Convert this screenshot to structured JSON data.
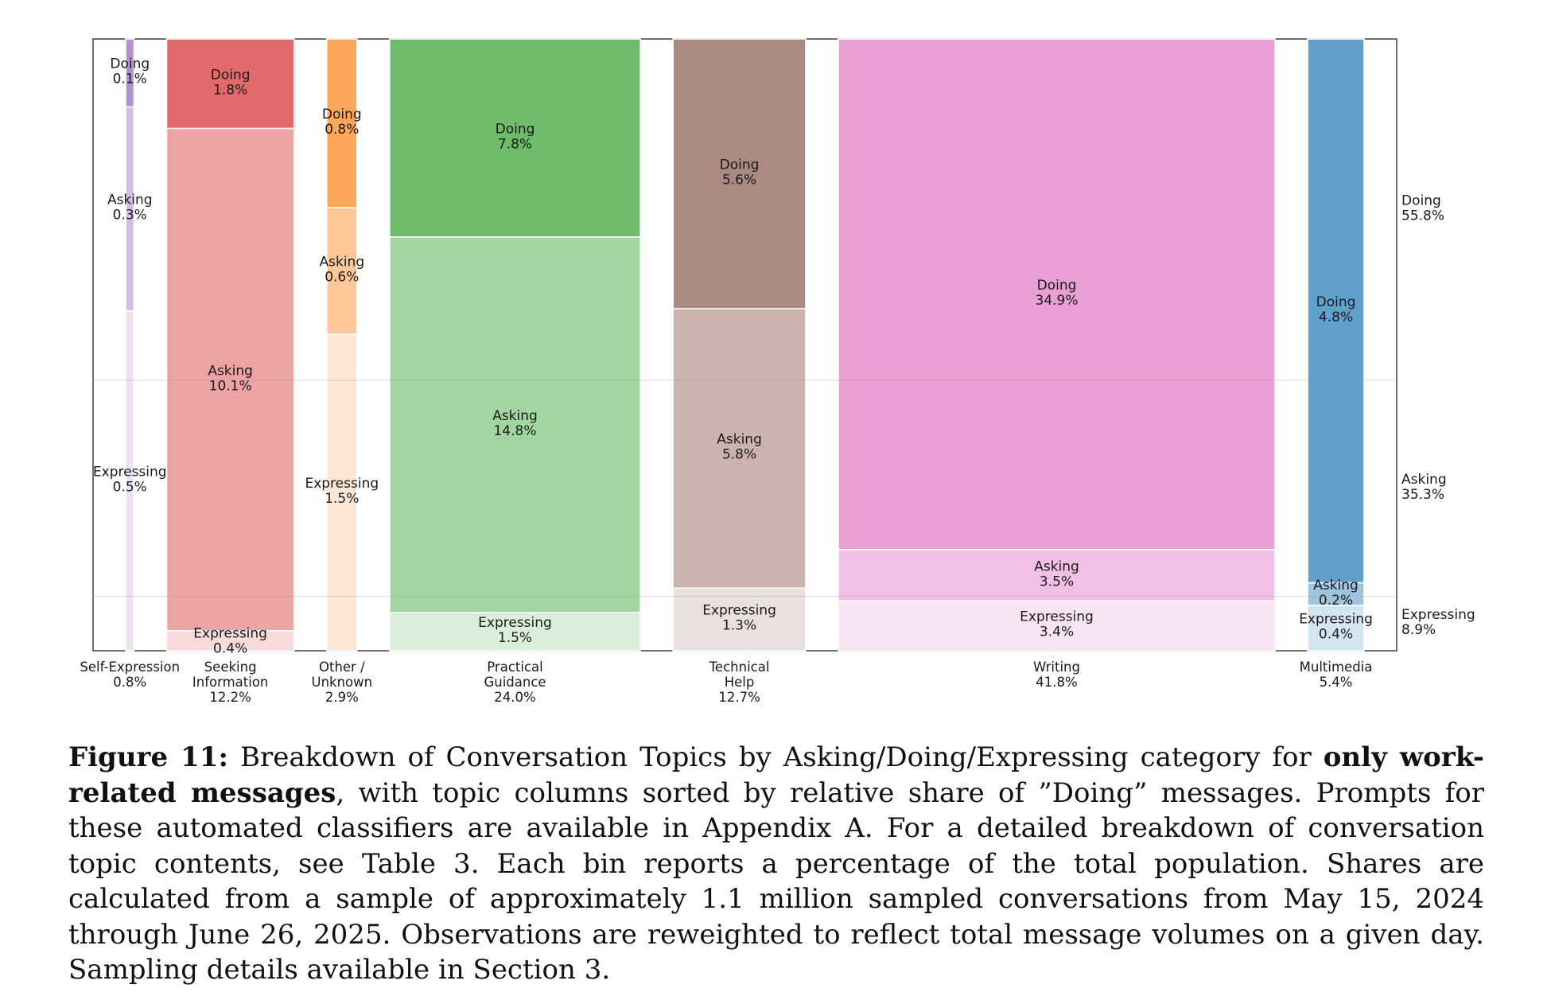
{
  "chart_data": {
    "type": "mosaic",
    "categories": [
      "Asking",
      "Doing",
      "Expressing"
    ],
    "stack_order_bottom_to_top": [
      "Expressing",
      "Asking",
      "Doing"
    ],
    "colors": {
      "Self-Expression": {
        "Doing": "#b491d3",
        "Asking": "#d2bde6",
        "Expressing": "#ebe2f4"
      },
      "Seeking Information": {
        "Doing": "#e26a6a",
        "Asking": "#eca3a2",
        "Expressing": "#f8dada"
      },
      "Other / Unknown": {
        "Doing": "#fda75a",
        "Asking": "#fdc798",
        "Expressing": "#fee6d5"
      },
      "Practical Guidance": {
        "Doing": "#6dbb6b",
        "Asking": "#a2d6a1",
        "Expressing": "#daefd9"
      },
      "Technical Help": {
        "Doing": "#ab8a81",
        "Asking": "#cbb4b0",
        "Expressing": "#eae0dd"
      },
      "Writing": {
        "Doing": "#eaa0d5",
        "Asking": "#f1c0e4",
        "Expressing": "#f8e4f2"
      },
      "Multimedia": {
        "Doing": "#62a0cc",
        "Asking": "#9ec5e0",
        "Expressing": "#d3e5f1"
      }
    },
    "topics": [
      {
        "name": "Self-Expression",
        "axis_label": [
          "Self-Expression",
          "0.8%"
        ],
        "total": 0.8,
        "segments": [
          {
            "category": "Doing",
            "value": 0.1,
            "label": [
              "Doing",
              "0.1%"
            ]
          },
          {
            "category": "Asking",
            "value": 0.3,
            "label": [
              "Asking",
              "0.3%"
            ]
          },
          {
            "category": "Expressing",
            "value": 0.5,
            "label": [
              "Expressing",
              "0.5%"
            ]
          }
        ]
      },
      {
        "name": "Seeking Information",
        "axis_label": [
          "Seeking",
          "Information",
          "12.2%"
        ],
        "total": 12.2,
        "segments": [
          {
            "category": "Doing",
            "value": 1.8,
            "label": [
              "Doing",
              "1.8%"
            ]
          },
          {
            "category": "Asking",
            "value": 10.1,
            "label": [
              "Asking",
              "10.1%"
            ]
          },
          {
            "category": "Expressing",
            "value": 0.4,
            "label": [
              "Expressing",
              "0.4%"
            ]
          }
        ]
      },
      {
        "name": "Other / Unknown",
        "axis_label": [
          "Other /",
          "Unknown",
          "2.9%"
        ],
        "total": 2.9,
        "segments": [
          {
            "category": "Doing",
            "value": 0.8,
            "label": [
              "Doing",
              "0.8%"
            ]
          },
          {
            "category": "Asking",
            "value": 0.6,
            "label": [
              "Asking",
              "0.6%"
            ]
          },
          {
            "category": "Expressing",
            "value": 1.5,
            "label": [
              "Expressing",
              "1.5%"
            ]
          }
        ]
      },
      {
        "name": "Practical Guidance",
        "axis_label": [
          "Practical",
          "Guidance",
          "24.0%"
        ],
        "total": 24.0,
        "segments": [
          {
            "category": "Doing",
            "value": 7.8,
            "label": [
              "Doing",
              "7.8%"
            ]
          },
          {
            "category": "Asking",
            "value": 14.8,
            "label": [
              "Asking",
              "14.8%"
            ]
          },
          {
            "category": "Expressing",
            "value": 1.5,
            "label": [
              "Expressing",
              "1.5%"
            ]
          }
        ]
      },
      {
        "name": "Technical Help",
        "axis_label": [
          "Technical",
          "Help",
          "12.7%"
        ],
        "total": 12.7,
        "segments": [
          {
            "category": "Doing",
            "value": 5.6,
            "label": [
              "Doing",
              "5.6%"
            ]
          },
          {
            "category": "Asking",
            "value": 5.8,
            "label": [
              "Asking",
              "5.8%"
            ]
          },
          {
            "category": "Expressing",
            "value": 1.3,
            "label": [
              "Expressing",
              "1.3%"
            ]
          }
        ]
      },
      {
        "name": "Writing",
        "axis_label": [
          "Writing",
          "41.8%"
        ],
        "total": 41.8,
        "segments": [
          {
            "category": "Doing",
            "value": 34.9,
            "label": [
              "Doing",
              "34.9%"
            ]
          },
          {
            "category": "Asking",
            "value": 3.5,
            "label": [
              "Asking",
              "3.5%"
            ]
          },
          {
            "category": "Expressing",
            "value": 3.4,
            "label": [
              "Expressing",
              "3.4%"
            ]
          }
        ]
      },
      {
        "name": "Multimedia",
        "axis_label": [
          "Multimedia",
          "5.4%"
        ],
        "total": 5.4,
        "segments": [
          {
            "category": "Doing",
            "value": 4.8,
            "label": [
              "Doing",
              "4.8%"
            ]
          },
          {
            "category": "Asking",
            "value": 0.2,
            "label": [
              "Asking",
              "0.2%"
            ]
          },
          {
            "category": "Expressing",
            "value": 0.4,
            "label": [
              "Expressing",
              "0.4%"
            ]
          }
        ]
      }
    ],
    "overall_shares": [
      {
        "category": "Doing",
        "value": 55.8,
        "label": [
          "Doing",
          "55.8%"
        ]
      },
      {
        "category": "Asking",
        "value": 35.3,
        "label": [
          "Asking",
          "35.3%"
        ]
      },
      {
        "category": "Expressing",
        "value": 8.9,
        "label": [
          "Expressing",
          "8.9%"
        ]
      }
    ],
    "grid": true
  },
  "caption": {
    "figure_label": "Figure 11:",
    "text_1": " Breakdown of Conversation Topics by Asking/Doing/Expressing category for ",
    "bold_1": "only work-related messages",
    "text_2": ", with topic columns sorted by relative share of ”Doing” messages. Prompts for these automated classifiers are available in Appendix A. For a detailed breakdown of conversation topic contents, see Table 3. Each bin reports a percentage of the total population. Shares are calculated from a sample of approximately 1.1 million sampled conversations from May 15, 2024 through June 26, 2025. Observations are reweighted to reflect total message volumes on a given day. Sampling details available in Section 3."
  }
}
